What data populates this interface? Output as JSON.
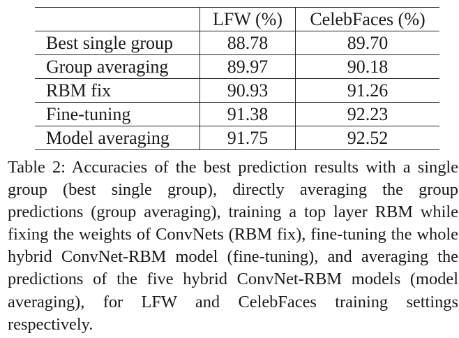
{
  "table": {
    "columns": [
      "",
      "LFW (%)",
      "CelebFaces (%)"
    ],
    "rows": [
      {
        "method": "Best single group",
        "lfw": "88.78",
        "celebfaces": "89.70"
      },
      {
        "method": "Group averaging",
        "lfw": "89.97",
        "celebfaces": "90.18"
      },
      {
        "method": "RBM fix",
        "lfw": "90.93",
        "celebfaces": "91.26"
      },
      {
        "method": "Fine-tuning",
        "lfw": "91.38",
        "celebfaces": "92.23"
      },
      {
        "method": "Model averaging",
        "lfw": "91.75",
        "celebfaces": "92.52"
      }
    ]
  },
  "caption": "Table 2:  Accuracies of the best prediction results with a single group (best single group), directly averaging the group predictions (group averaging), training a top layer RBM while fixing the weights of ConvNets (RBM fix), fine-tuning the whole hybrid ConvNet-RBM model (fine-tuning), and averaging the predictions of the five hybrid ConvNet-RBM models (model averaging), for LFW and CelebFaces training settings respectively."
}
